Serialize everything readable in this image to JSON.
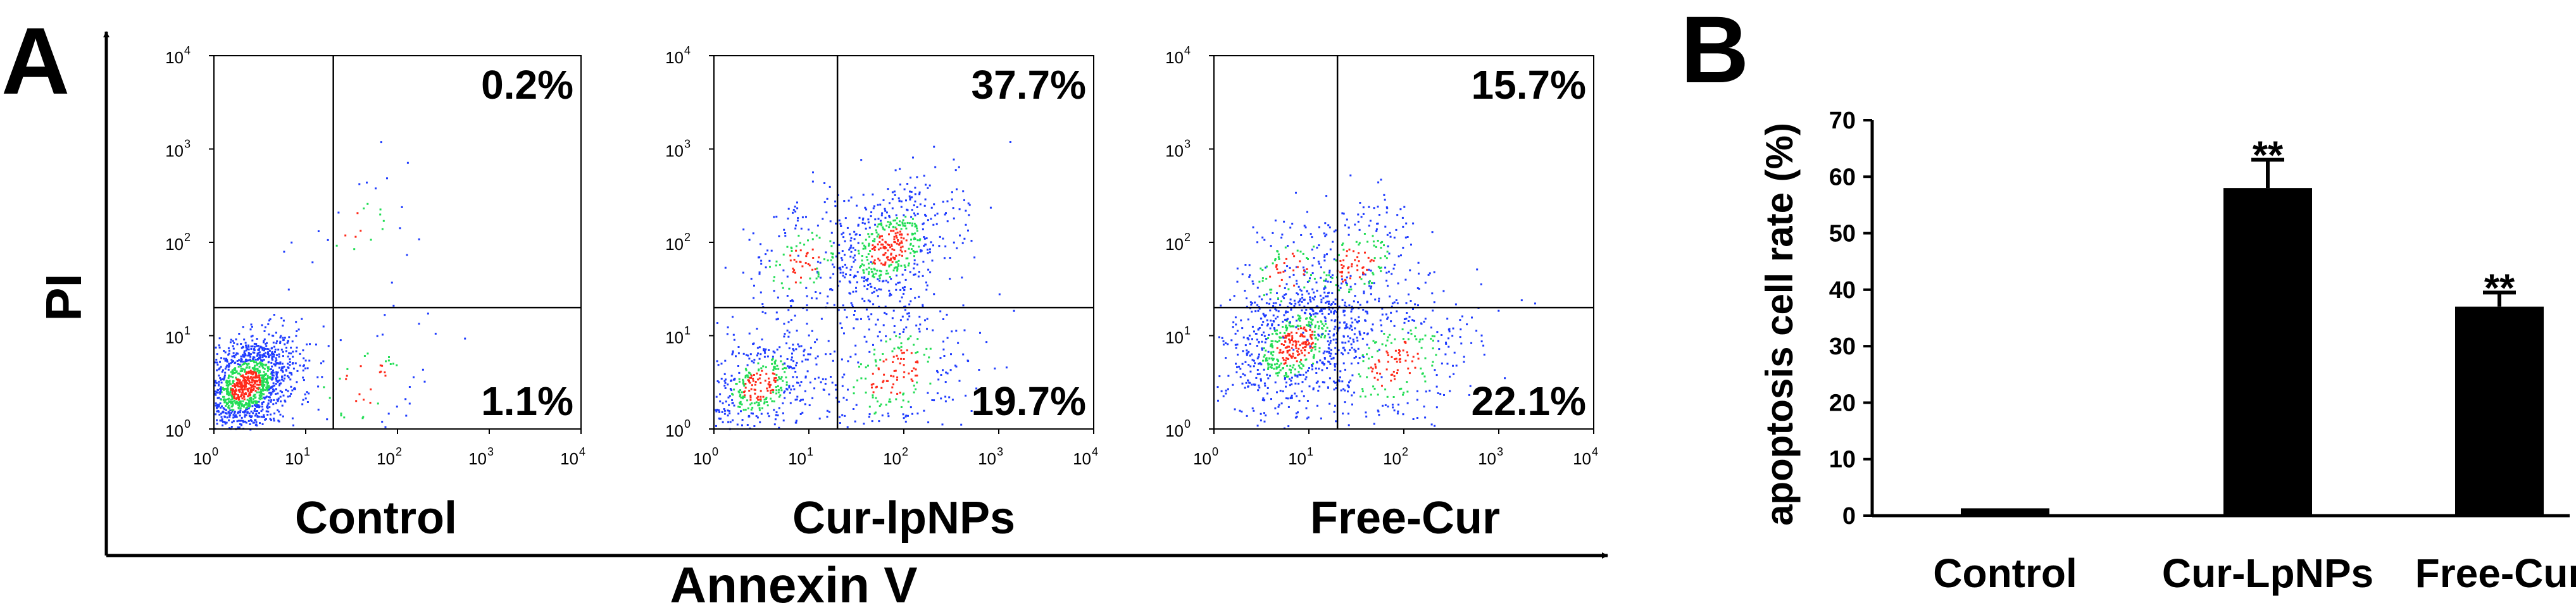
{
  "panel_a": {
    "letter": "A",
    "y_axis_label": "PI",
    "x_axis_label": "Annexin V",
    "tick_base": "10",
    "tick_exponents": [
      "0",
      "1",
      "2",
      "3",
      "4"
    ]
  },
  "panel_b": {
    "letter": "B"
  },
  "colors": {
    "density_low": "#1f3cff",
    "density_mid": "#22dd55",
    "density_high": "#ff2a1a",
    "bar_fill": "#000000"
  },
  "chart_data": [
    {
      "type": "scatter",
      "subtype": "flow-cytometry-quadrant-plot",
      "title": "Control",
      "xlabel": "Annexin V",
      "ylabel": "PI",
      "x_scale": "log",
      "y_scale": "log",
      "xlim": [
        1,
        10000
      ],
      "ylim": [
        1,
        10000
      ],
      "quadrant_gate": {
        "x": 20,
        "y": 20
      },
      "quadrants": {
        "upper_left": "",
        "upper_right": "0.2%",
        "lower_left": "",
        "lower_right": "1.1%"
      },
      "populations": [
        {
          "center_x": 2.2,
          "center_y": 3.0,
          "share": 0.93,
          "spread": 0.28
        },
        {
          "center_x": 40,
          "center_y": 3.0,
          "share": 0.05,
          "spread": 0.45
        },
        {
          "center_x": 40,
          "center_y": 150,
          "share": 0.02,
          "spread": 0.35
        }
      ]
    },
    {
      "type": "scatter",
      "subtype": "flow-cytometry-quadrant-plot",
      "title": "Cur-lpNPs",
      "xlabel": "Annexin V",
      "ylabel": "PI",
      "x_scale": "log",
      "y_scale": "log",
      "xlim": [
        1,
        10000
      ],
      "ylim": [
        1,
        10000
      ],
      "quadrant_gate": {
        "x": 20,
        "y": 20
      },
      "quadrants": {
        "upper_left": "",
        "upper_right": "37.7%",
        "lower_left": "",
        "lower_right": "19.7%"
      },
      "populations": [
        {
          "center_x": 3.0,
          "center_y": 3.0,
          "share": 0.3,
          "spread": 0.3
        },
        {
          "center_x": 80,
          "center_y": 4.0,
          "share": 0.2,
          "spread": 0.45
        },
        {
          "center_x": 70,
          "center_y": 90,
          "share": 0.38,
          "spread": 0.35
        },
        {
          "center_x": 8,
          "center_y": 60,
          "share": 0.12,
          "spread": 0.35
        }
      ]
    },
    {
      "type": "scatter",
      "subtype": "flow-cytometry-quadrant-plot",
      "title": "Free-Cur",
      "xlabel": "Annexin V",
      "ylabel": "PI",
      "x_scale": "log",
      "y_scale": "log",
      "xlim": [
        1,
        10000
      ],
      "ylim": [
        1,
        10000
      ],
      "quadrant_gate": {
        "x": 20,
        "y": 20
      },
      "quadrants": {
        "upper_left": "",
        "upper_right": "15.7%",
        "lower_left": "",
        "lower_right": "22.1%"
      },
      "populations": [
        {
          "center_x": 7,
          "center_y": 8,
          "share": 0.52,
          "spread": 0.35
        },
        {
          "center_x": 80,
          "center_y": 5,
          "share": 0.22,
          "spread": 0.45
        },
        {
          "center_x": 30,
          "center_y": 60,
          "share": 0.16,
          "spread": 0.35
        },
        {
          "center_x": 6,
          "center_y": 50,
          "share": 0.1,
          "spread": 0.35
        }
      ]
    },
    {
      "type": "bar",
      "title": "",
      "categories": [
        "Control",
        "Cur-LpNPs",
        "Free-Cur"
      ],
      "values": [
        1.3,
        58,
        37
      ],
      "errors": [
        0,
        5,
        2.5
      ],
      "annotations": [
        "",
        "**",
        "**"
      ],
      "xlabel": "",
      "ylabel": "apoptosis cell rate (%)",
      "ylim": [
        0,
        70
      ],
      "yticks": [
        0,
        10,
        20,
        30,
        40,
        50,
        60,
        70
      ],
      "grid": false
    }
  ]
}
